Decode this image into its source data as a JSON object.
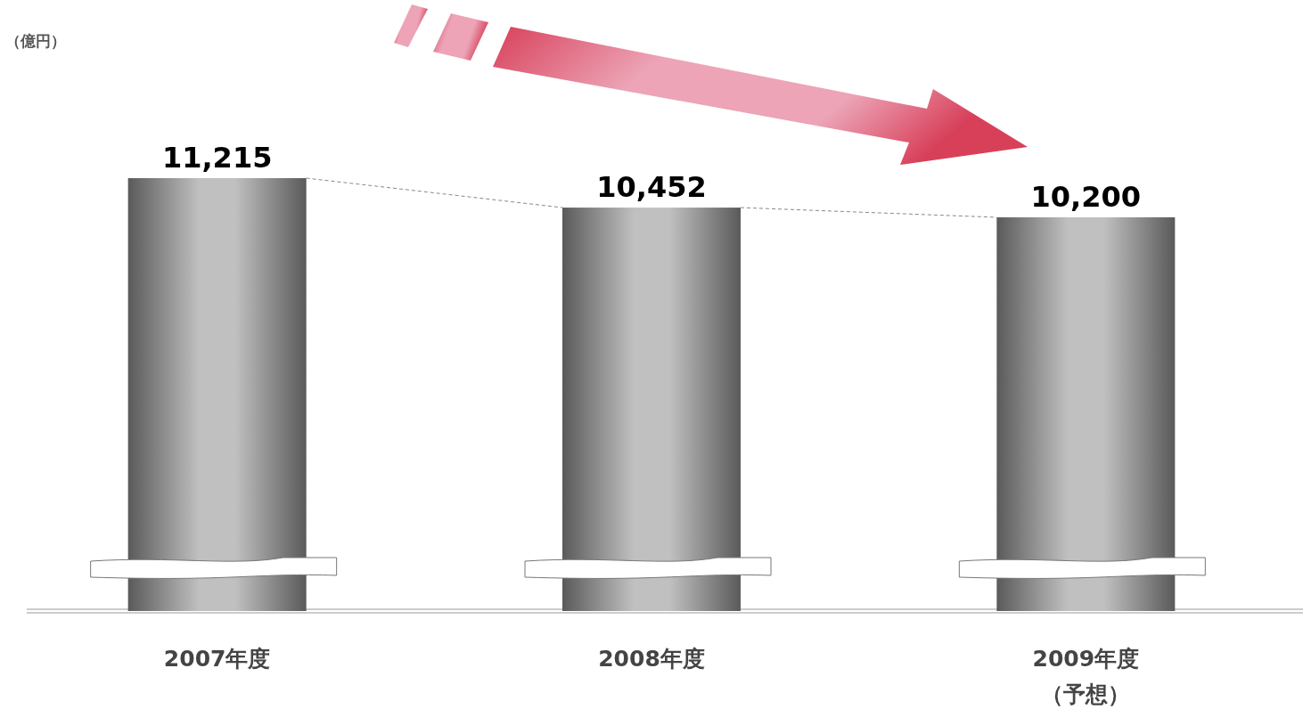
{
  "chart_data": {
    "type": "bar",
    "categories": [
      "2007年度",
      "2008年度",
      "2009年度（予想）"
    ],
    "values": [
      11215,
      10452,
      10200
    ],
    "value_labels": [
      "11,215",
      "10,452",
      "10,200"
    ],
    "color": "#5a5a5a",
    "annotations": [
      "（億円）"
    ]
  }
}
